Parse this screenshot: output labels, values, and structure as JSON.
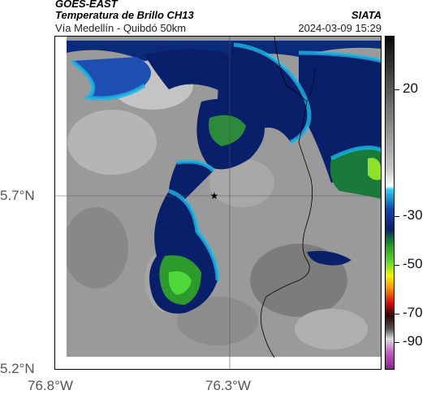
{
  "header": {
    "title_line1": "GOES-EAST",
    "title_line2": "Temperatura de Brillo CH13",
    "subtitle": "Vía Medellín - Quibdó 50km",
    "brand": "SIATA",
    "datetime": "2024-03-09 15:29"
  },
  "map": {
    "y_ticks": [
      "5.7°N",
      "5.2°N"
    ],
    "x_ticks": [
      "76.8°W",
      "76.3°W"
    ],
    "marker_symbol": "★"
  },
  "colorbar": {
    "ticks": [
      "20",
      "-30",
      "-50",
      "-70",
      "-90"
    ]
  }
}
